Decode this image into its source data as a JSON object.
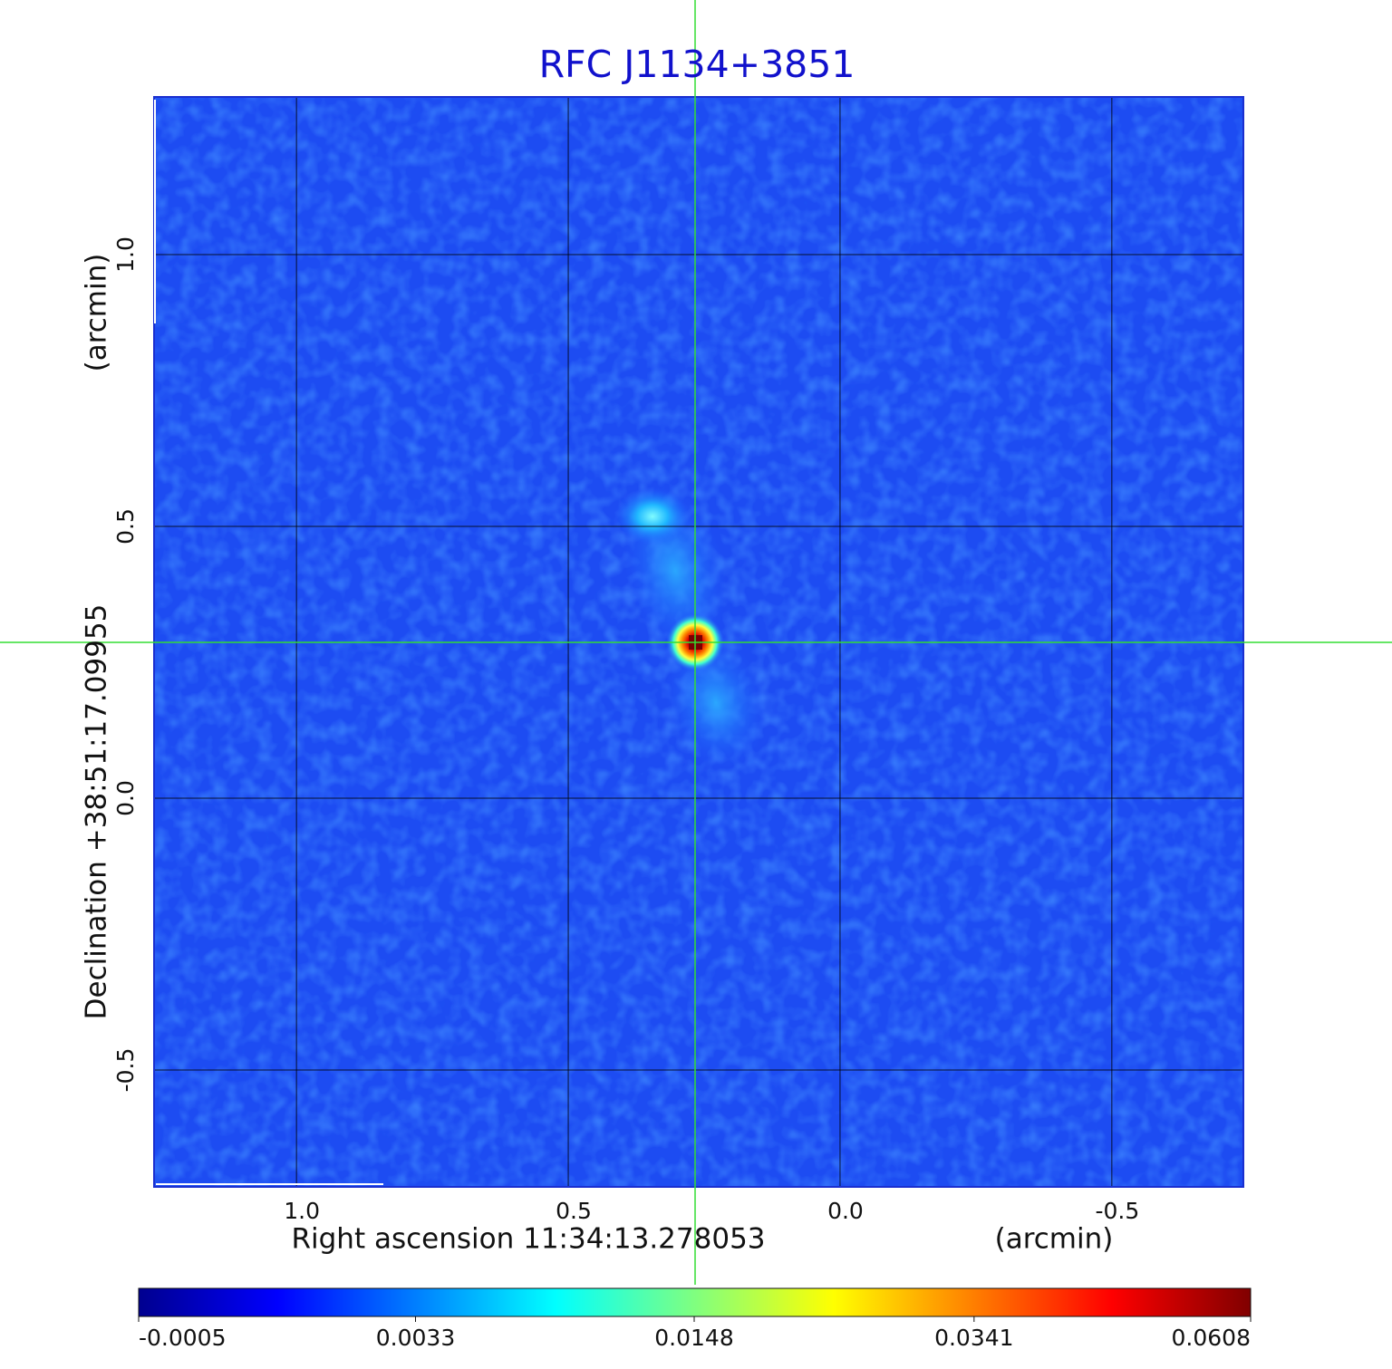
{
  "chart_data": {
    "type": "image",
    "title": "RFC J1134+3851",
    "x_label": "Right ascension  11:34:13.278053",
    "x_unit": "(arcmin)",
    "y_label": "Declination  +38:51:17.09955",
    "y_unit": "(arcmin)",
    "xlim": [
      1.262,
      -0.742
    ],
    "ylim": [
      -0.715,
      1.29
    ],
    "xticks": [
      {
        "value": 1,
        "label": "1.0"
      },
      0.5,
      {
        "value": 0,
        "label": "0.0"
      },
      -0.5
    ],
    "yticks": [
      -0.5,
      {
        "value": 0,
        "label": "0.0"
      },
      0.5,
      {
        "value": 1,
        "label": "1.0"
      }
    ],
    "grid": true,
    "colormap": "jet",
    "colorbar_scale": "sqrt",
    "colorbar_ticks": [
      -0.0005,
      0.0033,
      0.0148,
      0.0341,
      0.0608
    ]
  }
}
